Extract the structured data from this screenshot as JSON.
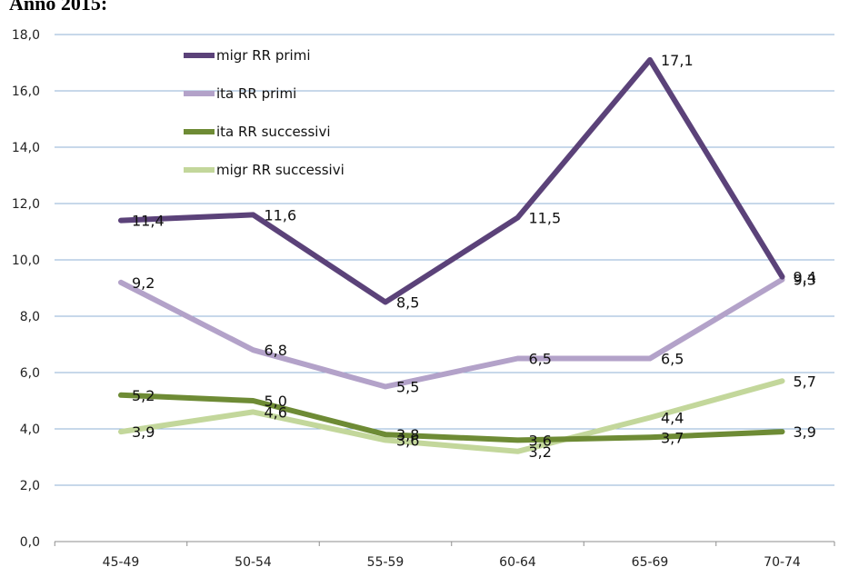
{
  "title": "Anno 2015:",
  "chart_data": {
    "type": "line",
    "title": "Anno 2015:",
    "xlabel": "",
    "ylabel": "",
    "categories": [
      "45-49",
      "50-54",
      "55-59",
      "60-64",
      "65-69",
      "70-74"
    ],
    "ylim": [
      0,
      18
    ],
    "y_ticks": [
      "0,0",
      "2,0",
      "4,0",
      "6,0",
      "8,0",
      "10,0",
      "12,0",
      "14,0",
      "16,0",
      "18,0"
    ],
    "grid": true,
    "legend_position": "top-left inside plot",
    "series": [
      {
        "name": "migr RR primi",
        "color": "#5b4279",
        "values": [
          11.4,
          11.6,
          8.5,
          11.5,
          17.1,
          9.4
        ],
        "labels": [
          "11,4",
          "11,6",
          "8,5",
          "11,5",
          "17,1",
          "9,4"
        ]
      },
      {
        "name": "ita RR primi",
        "color": "#b3a2c9",
        "values": [
          9.2,
          6.8,
          5.5,
          6.5,
          6.5,
          9.3
        ],
        "labels": [
          "9,2",
          "6,8",
          "5,5",
          "6,5",
          "6,5",
          "9,3"
        ]
      },
      {
        "name": "ita RR successivi",
        "color": "#6e8b35",
        "values": [
          5.2,
          5.0,
          3.8,
          3.6,
          3.7,
          3.9
        ],
        "labels": [
          "5,2",
          "5,0",
          "3,8",
          "3,6",
          "3,7",
          "3,9"
        ]
      },
      {
        "name": "migr RR successivi",
        "color": "#c3d79b",
        "values": [
          3.9,
          4.6,
          3.6,
          3.2,
          4.4,
          5.7
        ],
        "labels": [
          "3,9",
          "4,6",
          "3,6",
          "3,2",
          "4,4",
          "5,7"
        ]
      }
    ]
  }
}
